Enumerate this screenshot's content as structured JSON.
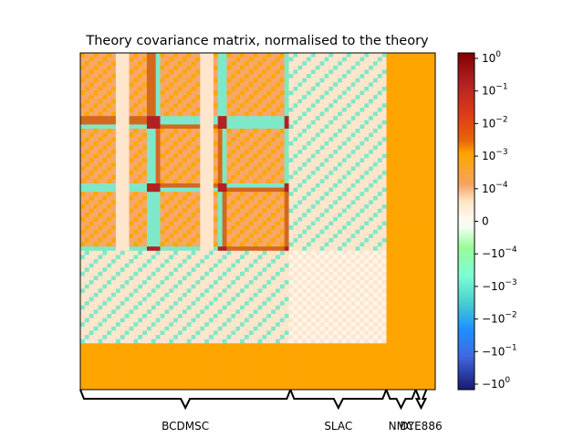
{
  "chart_data": {
    "type": "heatmap",
    "title": "Theory covariance matrix, normalised to the theory",
    "colorbar": {
      "scale": "symlog",
      "range": [
        -1,
        1
      ],
      "tick_labels": [
        {
          "value": 1,
          "label": "10^0",
          "base": "10",
          "exp": "0"
        },
        {
          "value": 0.1,
          "label": "10^-1",
          "base": "10",
          "exp": "−1"
        },
        {
          "value": 0.01,
          "label": "10^-2",
          "base": "10",
          "exp": "−2"
        },
        {
          "value": 0.001,
          "label": "10^-3",
          "base": "10",
          "exp": "−3"
        },
        {
          "value": 0.0001,
          "label": "10^-4",
          "base": "10",
          "exp": "−4"
        },
        {
          "value": 0,
          "label": "0",
          "base": "0",
          "exp": ""
        },
        {
          "value": -0.0001,
          "label": "-10^-4",
          "base": "−10",
          "exp": "−4"
        },
        {
          "value": -0.001,
          "label": "-10^-3",
          "base": "−10",
          "exp": "−3"
        },
        {
          "value": -0.01,
          "label": "-10^-2",
          "base": "−10",
          "exp": "−2"
        },
        {
          "value": -0.1,
          "label": "-10^-1",
          "base": "−10",
          "exp": "−1"
        },
        {
          "value": -1,
          "label": "-10^0",
          "base": "−10",
          "exp": "0"
        }
      ],
      "colors": [
        "#800000",
        "#b22222",
        "#dc3a1a",
        "#e8650a",
        "#ffa500",
        "#f4a460",
        "#fff8ee",
        "#98fb98",
        "#48d1cc",
        "#4169e1",
        "#191970"
      ]
    },
    "datasets": [
      {
        "name": "BCDMSC",
        "start": 0,
        "end": 0.592
      },
      {
        "name": "SLAC",
        "start": 0.592,
        "end": 0.862
      },
      {
        "name": "NMC",
        "start": 0.862,
        "end": 0.945
      },
      {
        "name": "DYE886",
        "start": 0.945,
        "end": 0.975
      }
    ],
    "block_boundaries": [
      0.21,
      0.4,
      0.592
    ],
    "grid": false
  }
}
